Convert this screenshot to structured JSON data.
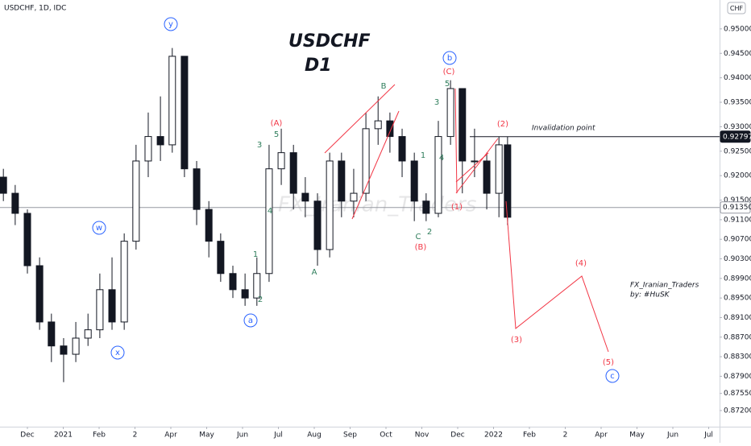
{
  "chart_data": {
    "type": "candlestick",
    "symbol_header": "USDCHF, 1D, IDC",
    "currency": "CHF",
    "title": [
      "USDCHF",
      "D1"
    ],
    "watermark": "FX_Iranian_Traders",
    "signature": [
      "FX_Iranian_Traders",
      "by: #HuSK"
    ],
    "invalidation_text": "Invalidation point",
    "candle_color": "#131722",
    "xlim": [
      -0.764,
      19.303
    ],
    "ylim": [
      0.8687,
      0.9559
    ],
    "xticks": [
      {
        "value": 0,
        "label": "Dec"
      },
      {
        "value": 1,
        "label": "2021"
      },
      {
        "value": 2,
        "label": "Feb"
      },
      {
        "value": 3,
        "label": "2"
      },
      {
        "value": 4,
        "label": "Apr"
      },
      {
        "value": 5,
        "label": "May"
      },
      {
        "value": 6,
        "label": "Jun"
      },
      {
        "value": 7,
        "label": "Jul"
      },
      {
        "value": 8,
        "label": "Aug"
      },
      {
        "value": 9,
        "label": "Sep"
      },
      {
        "value": 10,
        "label": "Oct"
      },
      {
        "value": 11,
        "label": "Nov"
      },
      {
        "value": 12,
        "label": "Dec"
      },
      {
        "value": 13,
        "label": "2022"
      },
      {
        "value": 14,
        "label": "Feb"
      },
      {
        "value": 15,
        "label": "2"
      },
      {
        "value": 16,
        "label": "Apr"
      },
      {
        "value": 17,
        "label": "May"
      },
      {
        "value": 18,
        "label": "Jun"
      },
      {
        "value": 19,
        "label": "Jul"
      }
    ],
    "yticks": [
      {
        "value": 0.95,
        "label": "0.95000"
      },
      {
        "value": 0.945,
        "label": "0.94500"
      },
      {
        "value": 0.94,
        "label": "0.94000"
      },
      {
        "value": 0.935,
        "label": "0.93500"
      },
      {
        "value": 0.93,
        "label": "0.93000"
      },
      {
        "value": 0.925,
        "label": "0.92500"
      },
      {
        "value": 0.92,
        "label": "0.92000"
      },
      {
        "value": 0.915,
        "label": "0.91500"
      },
      {
        "value": 0.911,
        "label": "0.91100"
      },
      {
        "value": 0.907,
        "label": "0.90700"
      },
      {
        "value": 0.903,
        "label": "0.90300"
      },
      {
        "value": 0.899,
        "label": "0.89900"
      },
      {
        "value": 0.895,
        "label": "0.89500"
      },
      {
        "value": 0.891,
        "label": "0.89100"
      },
      {
        "value": 0.887,
        "label": "0.88700"
      },
      {
        "value": 0.883,
        "label": "0.88300"
      },
      {
        "value": 0.879,
        "label": "0.87900"
      },
      {
        "value": 0.8755,
        "label": "0.87550"
      },
      {
        "value": 0.872,
        "label": "0.87200"
      }
    ],
    "price_lines": [
      {
        "value": 0.92797,
        "label": "0.92797",
        "color": "#131722"
      },
      {
        "value": 0.9135,
        "label": "0.91350",
        "color": "#9598a1"
      }
    ],
    "x": [
      -0.67,
      -0.34,
      0,
      0.34,
      0.67,
      1.01,
      1.35,
      1.69,
      2.02,
      2.36,
      2.7,
      3.03,
      3.37,
      3.71,
      4.04,
      4.38,
      4.72,
      5.06,
      5.39,
      5.73,
      6.07,
      6.4,
      6.74,
      7.08,
      7.42,
      7.75,
      8.09,
      8.43,
      8.76,
      9.1,
      9.44,
      9.78,
      10.11,
      10.45,
      10.79,
      11.12,
      11.46,
      11.8,
      12.13,
      12.47,
      12.81,
      13.15,
      13.39
    ],
    "open": [
      0.9197,
      0.9164,
      0.9123,
      0.9016,
      0.8901,
      0.8852,
      0.8835,
      0.8868,
      0.8885,
      0.8967,
      0.8901,
      0.9066,
      0.923,
      0.928,
      0.9263,
      0.9444,
      0.9214,
      0.9131,
      0.9066,
      0.9,
      0.8967,
      0.895,
      0.9,
      0.9214,
      0.9247,
      0.9164,
      0.9148,
      0.9049,
      0.923,
      0.9148,
      0.9164,
      0.9296,
      0.9312,
      0.928,
      0.923,
      0.9148,
      0.9123,
      0.928,
      0.9378,
      0.923,
      0.923,
      0.9164,
      0.9263
    ],
    "high": [
      0.9214,
      0.9181,
      0.9131,
      0.9033,
      0.8918,
      0.8868,
      0.8901,
      0.8918,
      0.9,
      0.9033,
      0.9082,
      0.9263,
      0.9329,
      0.9362,
      0.9461,
      0.9444,
      0.923,
      0.9148,
      0.9082,
      0.9016,
      0.9,
      0.9033,
      0.9263,
      0.9296,
      0.9263,
      0.9197,
      0.9164,
      0.9247,
      0.9247,
      0.9214,
      0.9329,
      0.9362,
      0.9329,
      0.9296,
      0.9247,
      0.9164,
      0.9312,
      0.9395,
      0.9378,
      0.9296,
      0.9247,
      0.928,
      0.928
    ],
    "low": [
      0.9148,
      0.9099,
      0.9,
      0.8885,
      0.8819,
      0.8778,
      0.8819,
      0.8852,
      0.8868,
      0.8885,
      0.8885,
      0.9049,
      0.9197,
      0.923,
      0.9247,
      0.9197,
      0.9099,
      0.9033,
      0.8983,
      0.895,
      0.8934,
      0.8934,
      0.8983,
      0.9181,
      0.9131,
      0.9115,
      0.9016,
      0.9033,
      0.9115,
      0.9115,
      0.9148,
      0.9263,
      0.9247,
      0.9197,
      0.9107,
      0.9107,
      0.9115,
      0.9263,
      0.9164,
      0.9197,
      0.9131,
      0.9115,
      0.9099
    ],
    "close": [
      0.9164,
      0.9123,
      0.9016,
      0.8901,
      0.8852,
      0.8835,
      0.8868,
      0.8885,
      0.8967,
      0.8901,
      0.9066,
      0.923,
      0.928,
      0.9263,
      0.9444,
      0.9214,
      0.9131,
      0.9066,
      0.9,
      0.8967,
      0.895,
      0.9,
      0.9214,
      0.9247,
      0.9164,
      0.9148,
      0.9049,
      0.923,
      0.9148,
      0.9164,
      0.9296,
      0.9312,
      0.928,
      0.923,
      0.9148,
      0.9123,
      0.928,
      0.9378,
      0.923,
      0.923,
      0.9164,
      0.9263,
      0.9115
    ],
    "wave_labels": [
      {
        "style": "circle",
        "color": "#2962ff",
        "labels": [
          "y",
          "w",
          "x",
          "a",
          "b",
          "c"
        ]
      },
      {
        "style": "plain",
        "color": "#f23645",
        "labels": [
          "(A)",
          "(B)",
          "(C)",
          "(1)",
          "(2)",
          "(3)",
          "(4)",
          "(5)"
        ]
      },
      {
        "style": "plain",
        "color": "#2e7d5b",
        "labels": [
          "3",
          "5",
          "4",
          "1",
          "2",
          "A",
          "B",
          "C",
          "1",
          "2",
          "3",
          "4",
          "5"
        ]
      }
    ]
  }
}
